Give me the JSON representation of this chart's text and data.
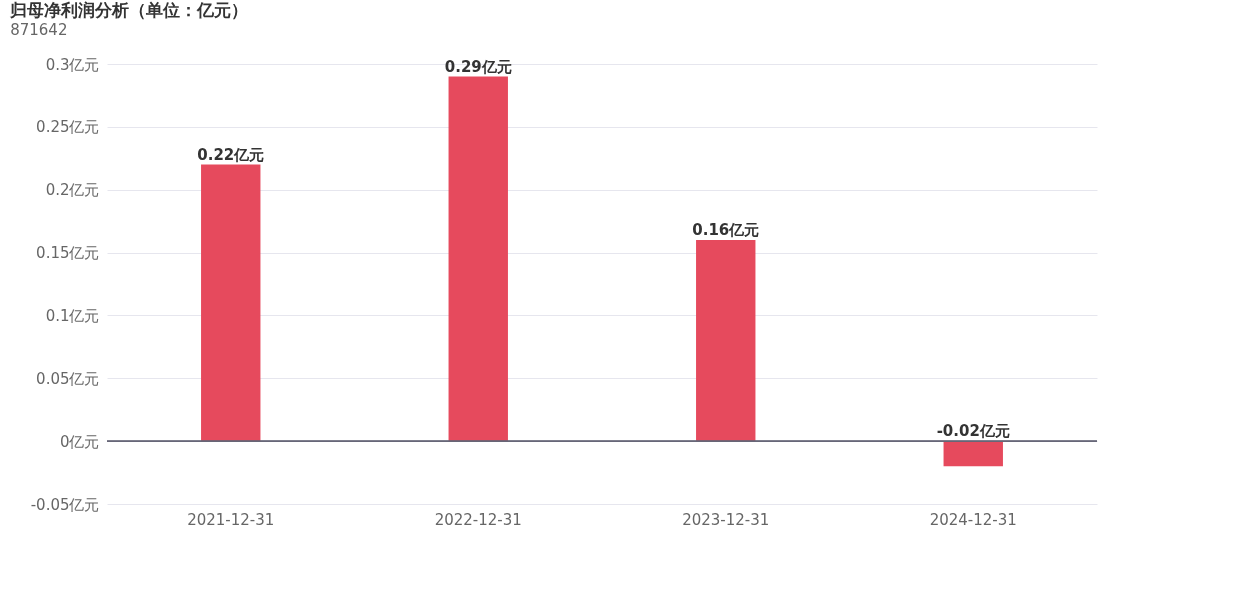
{
  "chart_data": {
    "type": "bar",
    "title": "归母净利润分析（单位：亿元）",
    "subtitle": "871642",
    "categories": [
      "2021-12-31",
      "2022-12-31",
      "2023-12-31",
      "2024-12-31"
    ],
    "values": [
      0.22,
      0.29,
      0.16,
      -0.02
    ],
    "value_labels": [
      "0.22亿元",
      "0.29亿元",
      "0.16亿元",
      "-0.02亿元"
    ],
    "color": "#e64a5d",
    "ylim": [
      -0.05,
      0.3
    ],
    "yticks": [
      {
        "value": -0.05,
        "label": "-0.05亿元"
      },
      {
        "value": 0,
        "label": "0亿元"
      },
      {
        "value": 0.05,
        "label": "0.05亿元"
      },
      {
        "value": 0.1,
        "label": "0.1亿元"
      },
      {
        "value": 0.15,
        "label": "0.15亿元"
      },
      {
        "value": 0.2,
        "label": "0.2亿元"
      },
      {
        "value": 0.25,
        "label": "0.25亿元"
      },
      {
        "value": 0.3,
        "label": "0.3亿元"
      }
    ],
    "grid": "y"
  }
}
